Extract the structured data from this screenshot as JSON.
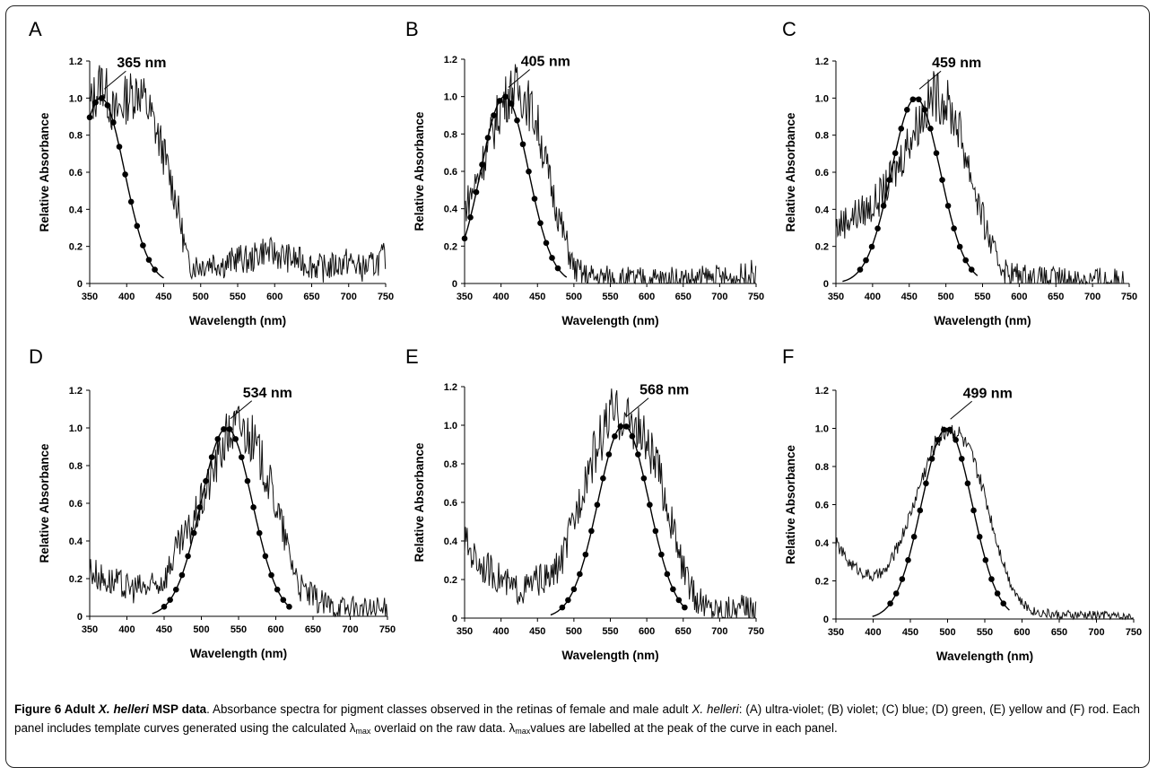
{
  "figure": {
    "caption": {
      "label": "Figure 6",
      "title_a": "Adult",
      "title_species": "X. helleri",
      "title_b": "MSP data",
      "seg1": ". Absorbance spectra for pigment classes observed in the retinas of female and male adult",
      "species": "X. helleri",
      "seg2": ": (A) ultra-violet; (B) violet; (C) blue; (D) green, (E) yellow and (F) rod. Each panel includes template curves generated using the calculated",
      "lambda": "λ",
      "max": "max",
      "seg3": "overlaid on the raw data.",
      "seg4": "values are labelled at the peak of the curve in each panel."
    }
  },
  "chart_data": [
    {
      "type": "line",
      "letter": "A",
      "annotation": "365 nm",
      "peak": 365,
      "xlabel": "Wavelength (nm)",
      "ylabel": "Relative Absorbance",
      "xlim": [
        350,
        750
      ],
      "ylim": [
        0,
        1.2
      ],
      "xticks": [
        "350",
        "400",
        "450",
        "500",
        "550",
        "600",
        "650",
        "700",
        "750"
      ],
      "yticks": [
        "0",
        "0.2",
        "0.4",
        "0.6",
        "0.8",
        "1.0",
        "1.2"
      ],
      "series": [
        {
          "values": [
            0.95,
            1.1,
            0.9,
            1.0,
            1.05,
            0.9,
            0.7,
            0.45,
            0.1,
            0.1,
            0.12,
            0.1,
            0.14,
            0.12,
            0.18,
            0.16,
            0.14,
            0.12,
            0.1,
            0.08,
            0.1,
            0.12,
            0.08,
            0.1,
            0.15
          ]
        }
      ]
    },
    {
      "type": "line",
      "letter": "B",
      "annotation": "405 nm",
      "peak": 405,
      "xlabel": "Wavelength (nm)",
      "ylabel": "Relative Absorbance",
      "xlim": [
        350,
        750
      ],
      "ylim": [
        0,
        1.2
      ],
      "xticks": [
        "350",
        "400",
        "450",
        "500",
        "550",
        "600",
        "650",
        "700",
        "750"
      ],
      "yticks": [
        "0",
        "0.2",
        "0.4",
        "0.6",
        "0.8",
        "1.0",
        "1.2"
      ],
      "series": [
        {
          "values": [
            0.4,
            0.55,
            0.75,
            0.95,
            1.05,
            1.0,
            0.85,
            0.55,
            0.3,
            0.08,
            0.04,
            0.03,
            0.03,
            0.02,
            0.02,
            0.02,
            0.02,
            0.02,
            0.02,
            0.02,
            0.03,
            0.03,
            0.02,
            0.04,
            0.06
          ]
        }
      ]
    },
    {
      "type": "line",
      "letter": "C",
      "annotation": "459 nm",
      "peak": 459,
      "xlabel": "Wavelength (nm)",
      "ylabel": "Relative Absorbance",
      "xlim": [
        350,
        750
      ],
      "ylim": [
        0,
        1.2
      ],
      "xticks": [
        "350",
        "400",
        "450",
        "500",
        "550",
        "600",
        "650",
        "700",
        "750"
      ],
      "yticks": [
        "0",
        "0.2",
        "0.4",
        "0.6",
        "0.8",
        "1.0",
        "1.2"
      ],
      "series": [
        {
          "values": [
            0.3,
            0.35,
            0.38,
            0.42,
            0.5,
            0.62,
            0.78,
            0.9,
            1.02,
            0.98,
            0.85,
            0.6,
            0.35,
            0.15,
            0.06,
            0.04,
            0.03,
            0.02,
            0.02,
            0.02,
            0.02,
            0.02,
            0.02,
            0.01,
            0.01
          ]
        }
      ]
    },
    {
      "type": "line",
      "letter": "D",
      "annotation": "534 nm",
      "peak": 534,
      "xlabel": "Wavelength (nm)",
      "ylabel": "Relative Absorbance",
      "xlim": [
        350,
        750
      ],
      "ylim": [
        0,
        1.2
      ],
      "xticks": [
        "350",
        "400",
        "450",
        "500",
        "550",
        "600",
        "650",
        "700",
        "750"
      ],
      "yticks": [
        "0",
        "0.2",
        "0.4",
        "0.6",
        "0.8",
        "1.0",
        "1.2"
      ],
      "series": [
        {
          "values": [
            0.25,
            0.2,
            0.18,
            0.15,
            0.15,
            0.15,
            0.2,
            0.35,
            0.45,
            0.6,
            0.78,
            0.95,
            1.02,
            0.95,
            0.8,
            0.6,
            0.35,
            0.15,
            0.1,
            0.06,
            0.05,
            0.04,
            0.03,
            0.03,
            0.03
          ]
        }
      ]
    },
    {
      "type": "line",
      "letter": "E",
      "annotation": "568 nm",
      "peak": 568,
      "xlabel": "Wavelength (nm)",
      "ylabel": "Relative Absorbance",
      "xlim": [
        350,
        750
      ],
      "ylim": [
        0,
        1.2
      ],
      "xticks": [
        "350",
        "400",
        "450",
        "500",
        "550",
        "600",
        "650",
        "700",
        "750"
      ],
      "yticks": [
        "0",
        "0.2",
        "0.4",
        "0.6",
        "0.8",
        "1.0",
        "1.2"
      ],
      "series": [
        {
          "values": [
            0.4,
            0.3,
            0.25,
            0.2,
            0.15,
            0.15,
            0.2,
            0.2,
            0.3,
            0.5,
            0.75,
            0.9,
            1.05,
            1.05,
            1.0,
            0.9,
            0.75,
            0.5,
            0.25,
            0.1,
            0.06,
            0.05,
            0.05,
            0.05,
            0.05
          ]
        }
      ]
    },
    {
      "type": "line",
      "letter": "F",
      "annotation": "499 nm",
      "peak": 499,
      "xlabel": "Wavelength (nm)",
      "ylabel": "Relative Absorbance",
      "xlim": [
        350,
        750
      ],
      "ylim": [
        0,
        1.2
      ],
      "xticks": [
        "350",
        "400",
        "450",
        "500",
        "550",
        "600",
        "650",
        "700",
        "750"
      ],
      "yticks": [
        "0",
        "0.2",
        "0.4",
        "0.6",
        "0.8",
        "1.0",
        "1.2"
      ],
      "series": [
        {
          "values": [
            0.4,
            0.3,
            0.25,
            0.22,
            0.25,
            0.38,
            0.55,
            0.75,
            0.92,
            1.0,
            0.97,
            0.85,
            0.65,
            0.4,
            0.2,
            0.08,
            0.04,
            0.03,
            0.02,
            0.02,
            0.02,
            0.02,
            0.02,
            0.01,
            0.01
          ]
        }
      ]
    }
  ]
}
